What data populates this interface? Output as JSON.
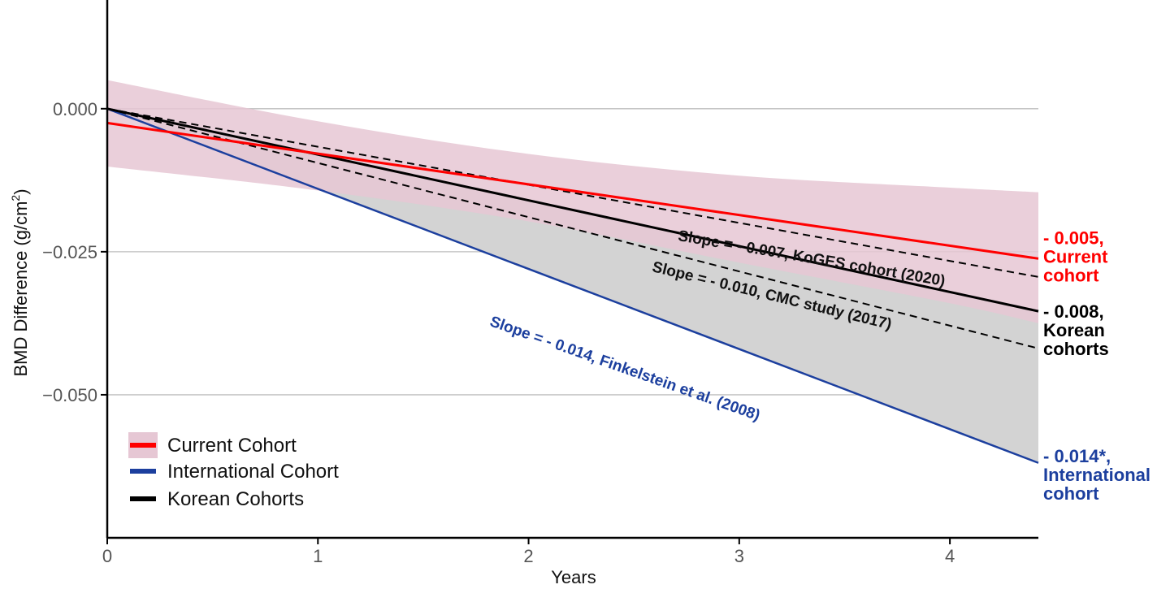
{
  "chart_data": {
    "type": "line",
    "xlabel": "Years",
    "ylabel_main": "BMD Difference (g/cm",
    "ylabel_sup": "2",
    "ylabel_close": ")",
    "xlim": [
      0,
      4.42
    ],
    "ylim": [
      -0.075,
      0.019
    ],
    "x_ticks": [
      0,
      1,
      2,
      3,
      4
    ],
    "x_tick_labels": [
      "0",
      "1",
      "2",
      "3",
      "4"
    ],
    "y_ticks": [
      0.0,
      -0.025,
      -0.05
    ],
    "y_tick_labels": [
      "0.000",
      "−0.025",
      "−0.050"
    ],
    "grid": "horizontal major lines",
    "legend_position": "bottom-left",
    "series": [
      {
        "name": "Current Cohort",
        "key": "current",
        "color": "#ff0000",
        "x": [
          0,
          4.42
        ],
        "y": [
          -0.0025,
          -0.0262
        ],
        "ci_upper": [
          [
            0,
            0.005
          ],
          [
            1,
            -0.0022
          ],
          [
            2,
            -0.0079
          ],
          [
            3,
            -0.0117
          ],
          [
            4,
            -0.0138
          ],
          [
            4.42,
            -0.0146
          ]
        ],
        "ci_lower": [
          [
            0,
            -0.0101
          ],
          [
            1,
            -0.0143
          ],
          [
            2,
            -0.0197
          ],
          [
            3,
            -0.0269
          ],
          [
            4,
            -0.034
          ],
          [
            4.42,
            -0.0375
          ]
        ],
        "ci_fill": "#e6c7d4",
        "end_label": [
          "- 0.005,",
          "Current",
          "cohort"
        ]
      },
      {
        "name": "International Cohort",
        "key": "international",
        "color": "#1c3f9e",
        "x": [
          0,
          4.42
        ],
        "y": [
          0.0,
          -0.0619
        ],
        "end_label": [
          "- 0.014*,",
          "International",
          "cohort"
        ]
      },
      {
        "name": "Korean Cohorts",
        "key": "korean",
        "color": "#000000",
        "x": [
          0,
          4.42
        ],
        "y": [
          0.0,
          -0.0354
        ],
        "end_label": [
          "- 0.008,",
          "Korean",
          "cohorts"
        ]
      }
    ],
    "reference_lines": [
      {
        "name": "KoGES cohort (2020)",
        "color": "#000000",
        "dash": true,
        "x": [
          0,
          4.42
        ],
        "y": [
          0.0,
          -0.0294
        ]
      },
      {
        "name": "CMC study (2017)",
        "color": "#000000",
        "dash": true,
        "x": [
          0,
          4.42
        ],
        "y": [
          0.0,
          -0.0419
        ]
      }
    ],
    "shaded_region": {
      "between": [
        "korean",
        "international"
      ],
      "color": "#d3d3d3"
    },
    "annotations": [
      {
        "text": "Slope = - 0.007, KoGES cohort (2020)",
        "color": "#111111",
        "x": 3.34,
        "y": -0.027,
        "angle_deg": 9.7
      },
      {
        "text": "Slope = - 0.010, CMC study (2017)",
        "color": "#111111",
        "x": 3.15,
        "y": -0.0335,
        "angle_deg": 13.7
      },
      {
        "text": "Slope = - 0.014, Finkelstein et al. (2008)",
        "color": "#1c3f9e",
        "x": 2.45,
        "y": -0.0462,
        "angle_deg": 19.5
      }
    ]
  }
}
